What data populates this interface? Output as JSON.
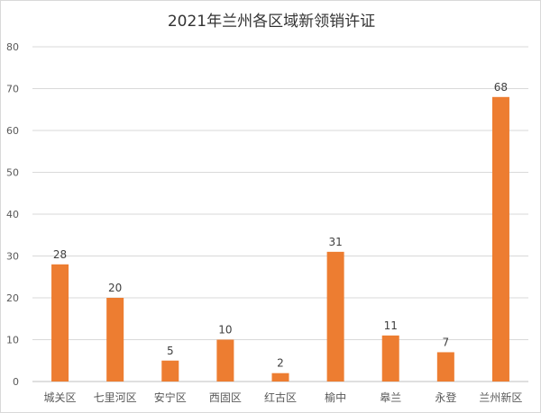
{
  "chart_data": {
    "type": "bar",
    "title": "2021年兰州各区域新领销许证",
    "categories": [
      "城关区",
      "七里河区",
      "安宁区",
      "西固区",
      "红古区",
      "榆中",
      "皋兰",
      "永登",
      "兰州新区"
    ],
    "values": [
      28,
      20,
      5,
      10,
      2,
      31,
      11,
      7,
      68
    ],
    "ylim": [
      0,
      80
    ],
    "yticks": [
      0,
      10,
      20,
      30,
      40,
      50,
      60,
      70,
      80
    ],
    "grid": true,
    "bar_color": "#ED7D31",
    "xlabel": "",
    "ylabel": ""
  }
}
